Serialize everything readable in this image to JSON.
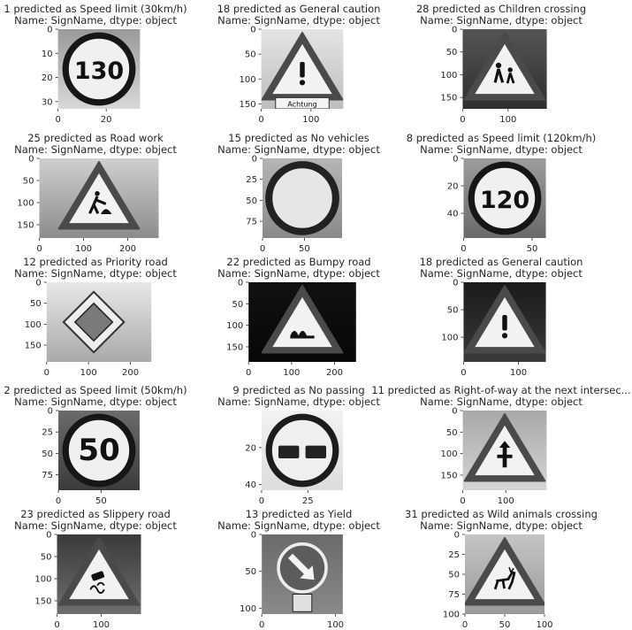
{
  "chart_data": [
    {
      "type": "image",
      "line1": "1    predicted as Speed limit (30km/h)",
      "line2": "Name: SignName, dtype: object",
      "img_w": 34,
      "img_h": 33,
      "xticks": [
        0,
        20
      ],
      "yticks": [
        0,
        10,
        20,
        30
      ],
      "sign": "speed",
      "text": "130",
      "bg_top": "#9a9a9a",
      "bg_bottom": "#d8d8d8"
    },
    {
      "type": "image",
      "line1": "18    predicted as General caution",
      "line2": "Name: SignName, dtype: object",
      "img_w": 165,
      "img_h": 160,
      "xticks": [
        0,
        100
      ],
      "yticks": [
        0,
        50,
        100,
        150
      ],
      "sign": "warning",
      "symbol": "!",
      "plate": "Achtung",
      "bg_top": "#e4e4e4",
      "bg_bottom": "#bdbdbd"
    },
    {
      "type": "image",
      "line1": "28    predicted as Children crossing",
      "line2": "Name: SignName, dtype: object",
      "img_w": 185,
      "img_h": 175,
      "xticks": [
        0,
        100
      ],
      "yticks": [
        0,
        50,
        100,
        150
      ],
      "sign": "warning",
      "symbol": "children",
      "bg_top": "#555555",
      "bg_bottom": "#2e2e2e"
    },
    {
      "type": "image",
      "line1": "25    predicted as Road work",
      "line2": "Name: SignName, dtype: object",
      "img_w": 270,
      "img_h": 180,
      "xticks": [
        0,
        100,
        200
      ],
      "yticks": [
        0,
        50,
        100,
        150
      ],
      "sign": "warning",
      "symbol": "roadwork",
      "bg_top": "#d0d0d0",
      "bg_bottom": "#8c8c8c"
    },
    {
      "type": "image",
      "line1": "15    predicted as No vehicles",
      "line2": "Name: SignName, dtype: object",
      "img_w": 95,
      "img_h": 95,
      "xticks": [
        0,
        50
      ],
      "yticks": [
        0,
        25,
        50,
        75
      ],
      "sign": "novehicles",
      "bg_top": "#b5b5b5",
      "bg_bottom": "#8a8a8a"
    },
    {
      "type": "image",
      "line1": "8    predicted as Speed limit (120km/h)",
      "line2": "Name: SignName, dtype: object",
      "img_w": 60,
      "img_h": 58,
      "xticks": [
        0,
        50
      ],
      "yticks": [
        0,
        20,
        40
      ],
      "sign": "speed",
      "text": "120",
      "bg_top": "#9c9c9c",
      "bg_bottom": "#6a6a6a"
    },
    {
      "type": "image",
      "line1": "12    predicted as Priority road",
      "line2": "Name: SignName, dtype: object",
      "img_w": 250,
      "img_h": 190,
      "xticks": [
        0,
        100,
        200
      ],
      "yticks": [
        0,
        50,
        100,
        150
      ],
      "sign": "priority",
      "bg_top": "#e8e8e8",
      "bg_bottom": "#a9a9a9"
    },
    {
      "type": "image",
      "line1": "22    predicted as Bumpy road",
      "line2": "Name: SignName, dtype: object",
      "img_w": 250,
      "img_h": 185,
      "xticks": [
        0,
        100,
        200
      ],
      "yticks": [
        0,
        50,
        100,
        150
      ],
      "sign": "warning",
      "symbol": "bumpy",
      "bg_top": "#111111",
      "bg_bottom": "#070707"
    },
    {
      "type": "image",
      "line1": "18    predicted as General caution",
      "line2": "Name: SignName, dtype: object",
      "img_w": 150,
      "img_h": 145,
      "xticks": [
        0,
        100
      ],
      "yticks": [
        0,
        50,
        100
      ],
      "sign": "warning",
      "symbol": "!",
      "bg_top": "#1a1a1a",
      "bg_bottom": "#3a3a3a"
    },
    {
      "type": "image",
      "line1": "2    predicted as Speed limit (50km/h)",
      "line2": "Name: SignName, dtype: object",
      "img_w": 95,
      "img_h": 93,
      "xticks": [
        0,
        50
      ],
      "yticks": [
        0,
        25,
        50,
        75
      ],
      "sign": "speed",
      "text": "50",
      "bg_top": "#6b6b6b",
      "bg_bottom": "#3b3b3b"
    },
    {
      "type": "image",
      "line1": "9    predicted as No passing",
      "line2": "Name: SignName, dtype: object",
      "img_w": 44,
      "img_h": 43,
      "xticks": [
        0,
        25
      ],
      "yticks": [
        20,
        40
      ],
      "sign": "nopassing",
      "bg_top": "#f2f2f2",
      "bg_bottom": "#dcdcdc"
    },
    {
      "type": "image",
      "line1": "11    predicted as Right-of-way at the next intersec...",
      "line2": "Name: SignName, dtype: object",
      "img_w": 195,
      "img_h": 185,
      "xticks": [
        0,
        100
      ],
      "yticks": [
        0,
        50,
        100,
        150
      ],
      "sign": "warning",
      "symbol": "rightofway",
      "bg_top": "#a8a8a8",
      "bg_bottom": "#d5d5d5"
    },
    {
      "type": "image",
      "line1": "23    predicted as Slippery road",
      "line2": "Name: SignName, dtype: object",
      "img_w": 190,
      "img_h": 180,
      "xticks": [
        0,
        100
      ],
      "yticks": [
        0,
        50,
        100,
        150
      ],
      "sign": "warning",
      "symbol": "slippery",
      "bg_top": "#3a3a3a",
      "bg_bottom": "#6e6e6e"
    },
    {
      "type": "image",
      "line1": "13    predicted as Yield",
      "line2": "Name: SignName, dtype: object",
      "img_w": 110,
      "img_h": 108,
      "xticks": [
        0,
        100
      ],
      "yticks": [
        0,
        50,
        100
      ],
      "sign": "keepright",
      "bg_top": "#6a6a6a",
      "bg_bottom": "#8a8a8a"
    },
    {
      "type": "image",
      "line1": "31    predicted as Wild animals crossing",
      "line2": "Name: SignName, dtype: object",
      "img_w": 100,
      "img_h": 100,
      "xticks": [
        0,
        50,
        100
      ],
      "yticks": [
        0,
        25,
        50,
        75,
        100
      ],
      "sign": "warning",
      "symbol": "deer",
      "bg_top": "#c4c4c4",
      "bg_bottom": "#9a9a9a"
    }
  ]
}
